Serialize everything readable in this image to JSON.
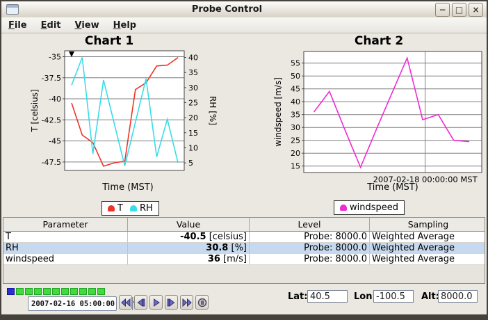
{
  "window": {
    "title": "Probe Control",
    "buttons": [
      {
        "name": "minimize",
        "glyph": "−"
      },
      {
        "name": "maximize",
        "glyph": "□"
      },
      {
        "name": "close",
        "glyph": "×"
      }
    ]
  },
  "menubar": {
    "items": [
      "File",
      "Edit",
      "View",
      "Help"
    ]
  },
  "chart_data": [
    {
      "type": "line",
      "name": "chart1",
      "title": "Chart 1",
      "x_axis": {
        "label": "Time (MST)",
        "points": 11
      },
      "axes": {
        "left": {
          "label": "T [celsius]",
          "ticks": [
            -35,
            -37.5,
            -40,
            -42.5,
            -45,
            -47.5
          ],
          "range": [
            -48.5,
            -34.3
          ]
        },
        "right": {
          "label": "RH [%]",
          "ticks": [
            40,
            35,
            30,
            25,
            20,
            15,
            10,
            5
          ],
          "range": [
            2.5,
            42.2
          ]
        }
      },
      "series": [
        {
          "name": "T",
          "color": "#ee3328",
          "axis": "left",
          "values": [
            -40.5,
            -44.3,
            -45.2,
            -48,
            -47.6,
            -47.4,
            -38.9,
            -38.1,
            -36.1,
            -36,
            -35.1
          ]
        },
        {
          "name": "RH",
          "color": "#38dde8",
          "axis": "right",
          "values": [
            30.8,
            40,
            8,
            32.5,
            18.2,
            4,
            18.5,
            33,
            7,
            19.5,
            5
          ]
        }
      ],
      "marker": {
        "index": 0,
        "shape": "triangle-down",
        "color": "#000000"
      }
    },
    {
      "type": "line",
      "name": "chart2",
      "title": "Chart 2",
      "x_axis": {
        "label": "Time (MST)",
        "points": 11,
        "tick": {
          "label": "2007-02-18 00:00:00 MST",
          "fraction": 0.682
        }
      },
      "axes": {
        "left": {
          "label": "windspeed [m/s]",
          "ticks": [
            55,
            50,
            45,
            40,
            35,
            30,
            25,
            20,
            15
          ],
          "range": [
            12.5,
            59.5
          ]
        }
      },
      "series": [
        {
          "name": "windspeed",
          "color": "#ee2cd4",
          "axis": "left",
          "values": [
            36,
            44,
            29,
            14.5,
            29,
            43,
            57,
            33,
            35,
            25,
            24.5
          ]
        }
      ]
    }
  ],
  "table": {
    "headers": [
      "Parameter",
      "Value",
      "Level",
      "Sampling"
    ],
    "rows": [
      {
        "parameter": "T",
        "value": "-40.5",
        "unit": "[celsius]",
        "level": "Probe: 8000.0",
        "sampling": "Weighted Average",
        "selected": false
      },
      {
        "parameter": "RH",
        "value": "30.8",
        "unit": "[%]",
        "level": "Probe: 8000.0",
        "sampling": "Weighted Average",
        "selected": true
      },
      {
        "parameter": "windspeed",
        "value": "36",
        "unit": "[m/s]",
        "level": "Probe: 8000.0",
        "sampling": "Weighted Average",
        "selected": false
      }
    ]
  },
  "timeline": {
    "steps": 11,
    "current_index": 0,
    "current_color": "#2d2dd8",
    "step_color": "#3fdc3f"
  },
  "transport": {
    "time": "2007-02-16 05:00:00 MST",
    "buttons": [
      {
        "name": "rewind",
        "icon": "rewind"
      },
      {
        "name": "step-back",
        "icon": "step-back"
      },
      {
        "name": "play",
        "icon": "play"
      },
      {
        "name": "step-forward",
        "icon": "step-forward"
      },
      {
        "name": "fast-forward",
        "icon": "fast-forward"
      },
      {
        "name": "pause-circle",
        "icon": "pause-circle"
      }
    ]
  },
  "coords": [
    {
      "name": "lat",
      "label": "Lat:",
      "value": "40.5"
    },
    {
      "name": "lon",
      "label": "Lon:",
      "value": "-100.5"
    },
    {
      "name": "alt",
      "label": "Alt:",
      "value": "8000.0"
    }
  ]
}
